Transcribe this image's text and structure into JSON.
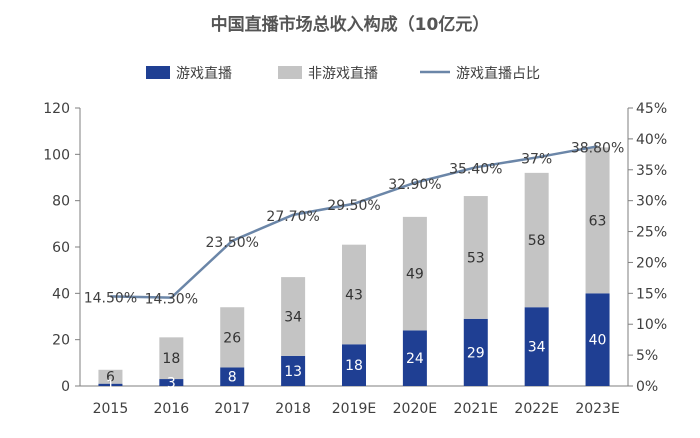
{
  "chart_data": {
    "type": "bar",
    "title": "中国直播市场总收入构成（10亿元）",
    "categories": [
      "2015",
      "2016",
      "2017",
      "2018",
      "2019E",
      "2020E",
      "2021E",
      "2022E",
      "2023E"
    ],
    "series": [
      {
        "name": "游戏直播",
        "type": "bar",
        "stack": "total",
        "color": "#1f3f93",
        "values": [
          1,
          3,
          8,
          13,
          18,
          24,
          29,
          34,
          40
        ],
        "labels": [
          "1",
          "3",
          "8",
          "13",
          "18",
          "24",
          "29",
          "34",
          "40"
        ]
      },
      {
        "name": "非游戏直播",
        "type": "bar",
        "stack": "total",
        "color": "#c4c4c4",
        "values": [
          6,
          18,
          26,
          34,
          43,
          49,
          53,
          58,
          63
        ],
        "labels": [
          "6",
          "18",
          "26",
          "34",
          "43",
          "49",
          "53",
          "58",
          "63"
        ]
      },
      {
        "name": "游戏直播占比",
        "type": "line",
        "axis": "right",
        "color": "#6b86a8",
        "values": [
          14.5,
          14.3,
          23.5,
          27.7,
          29.5,
          32.9,
          35.4,
          37,
          38.8
        ],
        "labels": [
          "14.50%",
          "14.30%",
          "23.50%",
          "27.70%",
          "29.50%",
          "32.90%",
          "35.40%",
          "37%",
          "38.80%"
        ]
      }
    ],
    "y_left": {
      "min": 0,
      "max": 120,
      "ticks": [
        "0",
        "20",
        "40",
        "60",
        "80",
        "100",
        "120"
      ]
    },
    "y_right": {
      "min": 0,
      "max": 45,
      "ticks": [
        "0%",
        "5%",
        "10%",
        "15%",
        "20%",
        "25%",
        "30%",
        "35%",
        "40%",
        "45%"
      ]
    },
    "legend_position": "top",
    "grid": false
  }
}
